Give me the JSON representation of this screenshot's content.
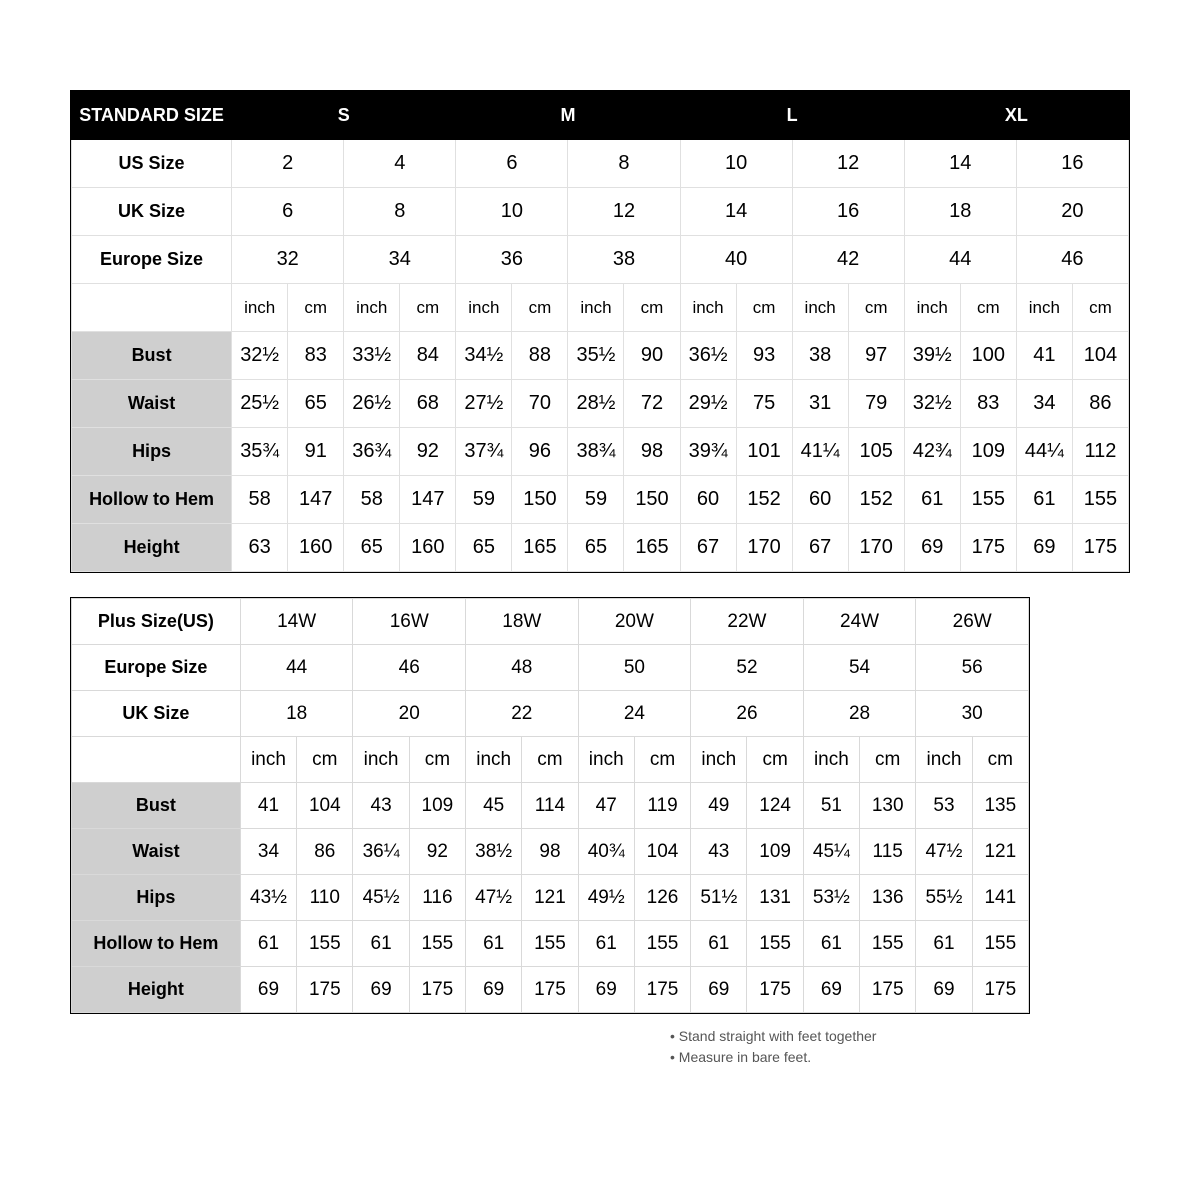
{
  "colors": {
    "header_bg": "#000000",
    "header_fg": "#ffffff",
    "grid": "#d9d9d9",
    "meas_label_bg": "#cfcfcf",
    "page_bg": "#ffffff",
    "note_color": "#555555"
  },
  "standard": {
    "header_label": "STANDARD SIZE",
    "size_groups": [
      "S",
      "M",
      "L",
      "XL"
    ],
    "size_label_rows": [
      {
        "label": "US Size",
        "values": [
          "2",
          "4",
          "6",
          "8",
          "10",
          "12",
          "14",
          "16"
        ]
      },
      {
        "label": "UK Size",
        "values": [
          "6",
          "8",
          "10",
          "12",
          "14",
          "16",
          "18",
          "20"
        ]
      },
      {
        "label": "Europe Size",
        "values": [
          "32",
          "34",
          "36",
          "38",
          "40",
          "42",
          "44",
          "46"
        ]
      }
    ],
    "unit_pair": [
      "inch",
      "cm"
    ],
    "measurements": [
      {
        "label": "Bust",
        "pairs": [
          [
            "32½",
            "83"
          ],
          [
            "33½",
            "84"
          ],
          [
            "34½",
            "88"
          ],
          [
            "35½",
            "90"
          ],
          [
            "36½",
            "93"
          ],
          [
            "38",
            "97"
          ],
          [
            "39½",
            "100"
          ],
          [
            "41",
            "104"
          ]
        ]
      },
      {
        "label": "Waist",
        "pairs": [
          [
            "25½",
            "65"
          ],
          [
            "26½",
            "68"
          ],
          [
            "27½",
            "70"
          ],
          [
            "28½",
            "72"
          ],
          [
            "29½",
            "75"
          ],
          [
            "31",
            "79"
          ],
          [
            "32½",
            "83"
          ],
          [
            "34",
            "86"
          ]
        ]
      },
      {
        "label": "Hips",
        "pairs": [
          [
            "35¾",
            "91"
          ],
          [
            "36¾",
            "92"
          ],
          [
            "37¾",
            "96"
          ],
          [
            "38¾",
            "98"
          ],
          [
            "39¾",
            "101"
          ],
          [
            "41¼",
            "105"
          ],
          [
            "42¾",
            "109"
          ],
          [
            "44¼",
            "112"
          ]
        ]
      },
      {
        "label": "Hollow to Hem",
        "pairs": [
          [
            "58",
            "147"
          ],
          [
            "58",
            "147"
          ],
          [
            "59",
            "150"
          ],
          [
            "59",
            "150"
          ],
          [
            "60",
            "152"
          ],
          [
            "60",
            "152"
          ],
          [
            "61",
            "155"
          ],
          [
            "61",
            "155"
          ]
        ]
      },
      {
        "label": "Height",
        "pairs": [
          [
            "63",
            "160"
          ],
          [
            "65",
            "160"
          ],
          [
            "65",
            "165"
          ],
          [
            "65",
            "165"
          ],
          [
            "67",
            "170"
          ],
          [
            "67",
            "170"
          ],
          [
            "69",
            "175"
          ],
          [
            "69",
            "175"
          ]
        ]
      }
    ]
  },
  "plus": {
    "size_label_rows": [
      {
        "label": "Plus Size(US)",
        "values": [
          "14W",
          "16W",
          "18W",
          "20W",
          "22W",
          "24W",
          "26W"
        ]
      },
      {
        "label": "Europe Size",
        "values": [
          "44",
          "46",
          "48",
          "50",
          "52",
          "54",
          "56"
        ]
      },
      {
        "label": "UK Size",
        "values": [
          "18",
          "20",
          "22",
          "24",
          "26",
          "28",
          "30"
        ]
      }
    ],
    "unit_pair": [
      "inch",
      "cm"
    ],
    "measurements": [
      {
        "label": "Bust",
        "pairs": [
          [
            "41",
            "104"
          ],
          [
            "43",
            "109"
          ],
          [
            "45",
            "114"
          ],
          [
            "47",
            "119"
          ],
          [
            "49",
            "124"
          ],
          [
            "51",
            "130"
          ],
          [
            "53",
            "135"
          ]
        ]
      },
      {
        "label": "Waist",
        "pairs": [
          [
            "34",
            "86"
          ],
          [
            "36¼",
            "92"
          ],
          [
            "38½",
            "98"
          ],
          [
            "40¾",
            "104"
          ],
          [
            "43",
            "109"
          ],
          [
            "45¼",
            "115"
          ],
          [
            "47½",
            "121"
          ]
        ]
      },
      {
        "label": "Hips",
        "pairs": [
          [
            "43½",
            "110"
          ],
          [
            "45½",
            "116"
          ],
          [
            "47½",
            "121"
          ],
          [
            "49½",
            "126"
          ],
          [
            "51½",
            "131"
          ],
          [
            "53½",
            "136"
          ],
          [
            "55½",
            "141"
          ]
        ]
      },
      {
        "label": "Hollow to Hem",
        "pairs": [
          [
            "61",
            "155"
          ],
          [
            "61",
            "155"
          ],
          [
            "61",
            "155"
          ],
          [
            "61",
            "155"
          ],
          [
            "61",
            "155"
          ],
          [
            "61",
            "155"
          ],
          [
            "61",
            "155"
          ]
        ]
      },
      {
        "label": "Height",
        "pairs": [
          [
            "69",
            "175"
          ],
          [
            "69",
            "175"
          ],
          [
            "69",
            "175"
          ],
          [
            "69",
            "175"
          ],
          [
            "69",
            "175"
          ],
          [
            "69",
            "175"
          ],
          [
            "69",
            "175"
          ]
        ]
      }
    ]
  },
  "notes": [
    "Stand straight with feet together",
    "Measure in bare feet."
  ]
}
